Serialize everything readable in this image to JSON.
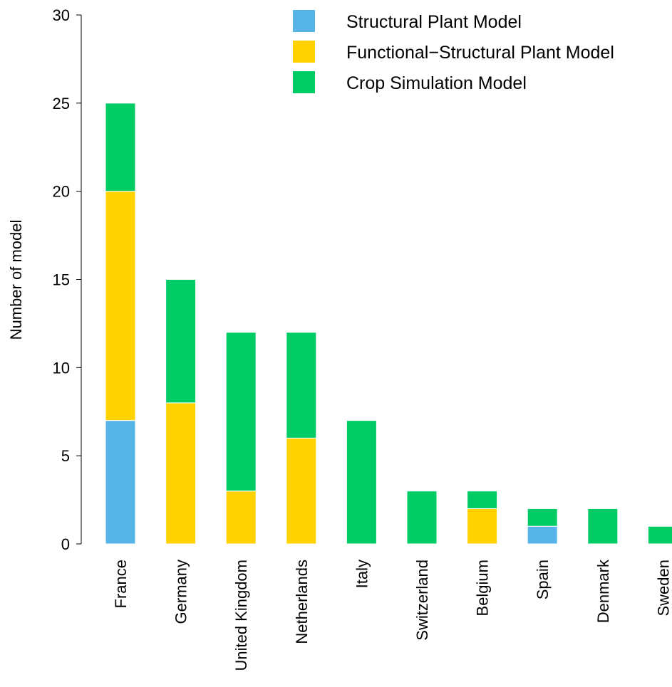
{
  "chart_data": {
    "type": "bar",
    "stacked": true,
    "categories": [
      "France",
      "Germany",
      "United Kingdom",
      "Netherlands",
      "Italy",
      "Switzerland",
      "Belgium",
      "Spain",
      "Denmark",
      "Sweden"
    ],
    "series": [
      {
        "name": "Structural Plant Model",
        "color": "#56B4E9",
        "values": [
          7,
          0,
          0,
          0,
          0,
          0,
          0,
          1,
          0,
          0
        ]
      },
      {
        "name": "Functional−Structural Plant Model",
        "color": "#FFD200",
        "values": [
          13,
          8,
          3,
          6,
          0,
          0,
          2,
          0,
          0,
          0
        ]
      },
      {
        "name": "Crop Simulation Model",
        "color": "#00CC66",
        "values": [
          5,
          7,
          9,
          6,
          7,
          3,
          1,
          1,
          2,
          1
        ]
      }
    ],
    "xlabel": "",
    "ylabel": "Number of model",
    "ylim": [
      0,
      30
    ],
    "yticks": [
      0,
      5,
      10,
      15,
      20,
      25,
      30
    ],
    "grid": false,
    "legend_position": "top-right"
  }
}
